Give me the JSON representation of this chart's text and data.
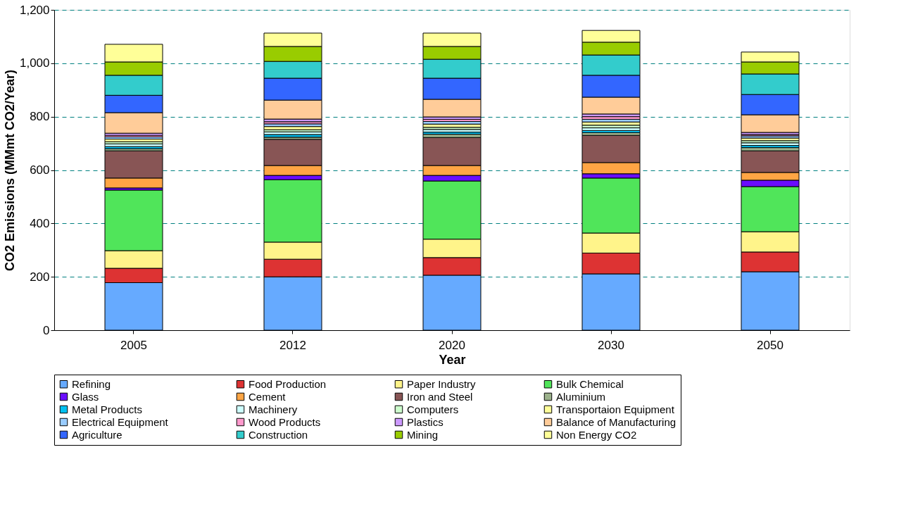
{
  "chart_data": {
    "type": "bar",
    "stacked": true,
    "xlabel": "Year",
    "ylabel": "CO2 Emissions (MMmt CO2/Year)",
    "categories": [
      "2005",
      "2012",
      "2020",
      "2030",
      "2050"
    ],
    "ylim": [
      0,
      1200
    ],
    "yticks": [
      0,
      200,
      400,
      600,
      800,
      {
        "value": 1000,
        "label": "1,000"
      },
      {
        "value": 1200,
        "label": "1,200"
      }
    ],
    "grid": "y",
    "legend": "bottom",
    "series": [
      {
        "name": "Refining",
        "color": "#66aaff",
        "values": [
          178,
          200,
          206,
          211,
          219
        ]
      },
      {
        "name": "Food Production",
        "color": "#dd3333",
        "values": [
          54,
          66,
          66,
          78,
          74
        ]
      },
      {
        "name": "Paper Industry",
        "color": "#fff48a",
        "values": [
          66,
          64,
          69,
          75,
          76
        ]
      },
      {
        "name": "Bulk Chemical",
        "color": "#50e55a",
        "values": [
          227,
          234,
          218,
          206,
          169
        ]
      },
      {
        "name": "Glass",
        "color": "#6a0dff",
        "values": [
          8,
          16,
          21,
          16,
          24
        ]
      },
      {
        "name": "Cement",
        "color": "#ffa544",
        "values": [
          37,
          37,
          37,
          42,
          29
        ]
      },
      {
        "name": "Iron and Steel",
        "color": "#885555",
        "values": [
          102,
          98,
          105,
          102,
          81
        ]
      },
      {
        "name": "Aluminium",
        "color": "#9cb28c",
        "values": [
          8,
          8,
          12,
          10,
          12
        ]
      },
      {
        "name": "Metal Products",
        "color": "#00c0f0",
        "values": [
          8,
          10,
          8,
          8,
          8
        ]
      },
      {
        "name": "Machinery",
        "color": "#ccffff",
        "values": [
          10,
          10,
          10,
          10,
          10
        ]
      },
      {
        "name": "Computers",
        "color": "#ccffcc",
        "values": [
          8,
          8,
          8,
          10,
          8
        ]
      },
      {
        "name": "Transportaion Equipment",
        "color": "#ffff99",
        "values": [
          10,
          12,
          12,
          12,
          10
        ]
      },
      {
        "name": "Electrical Equipment",
        "color": "#99ccff",
        "values": [
          8,
          10,
          10,
          10,
          8
        ]
      },
      {
        "name": "Wood Products",
        "color": "#ff99cc",
        "values": [
          6,
          8,
          8,
          10,
          5
        ]
      },
      {
        "name": "Plastics",
        "color": "#cc99ff",
        "values": [
          8,
          10,
          9,
          10,
          8
        ]
      },
      {
        "name": "Balance of Manufacturing",
        "color": "#ffcc99",
        "values": [
          77,
          71,
          66,
          63,
          66
        ]
      },
      {
        "name": "Agriculture",
        "color": "#3366ff",
        "values": [
          65,
          82,
          79,
          82,
          76
        ]
      },
      {
        "name": "Construction",
        "color": "#33cccc",
        "values": [
          75,
          63,
          71,
          76,
          77
        ]
      },
      {
        "name": "Mining",
        "color": "#99cc00",
        "values": [
          50,
          56,
          48,
          48,
          45
        ]
      },
      {
        "name": "Non Energy CO2",
        "color": "#ffff98",
        "values": [
          66,
          50,
          50,
          44,
          37
        ]
      }
    ]
  }
}
